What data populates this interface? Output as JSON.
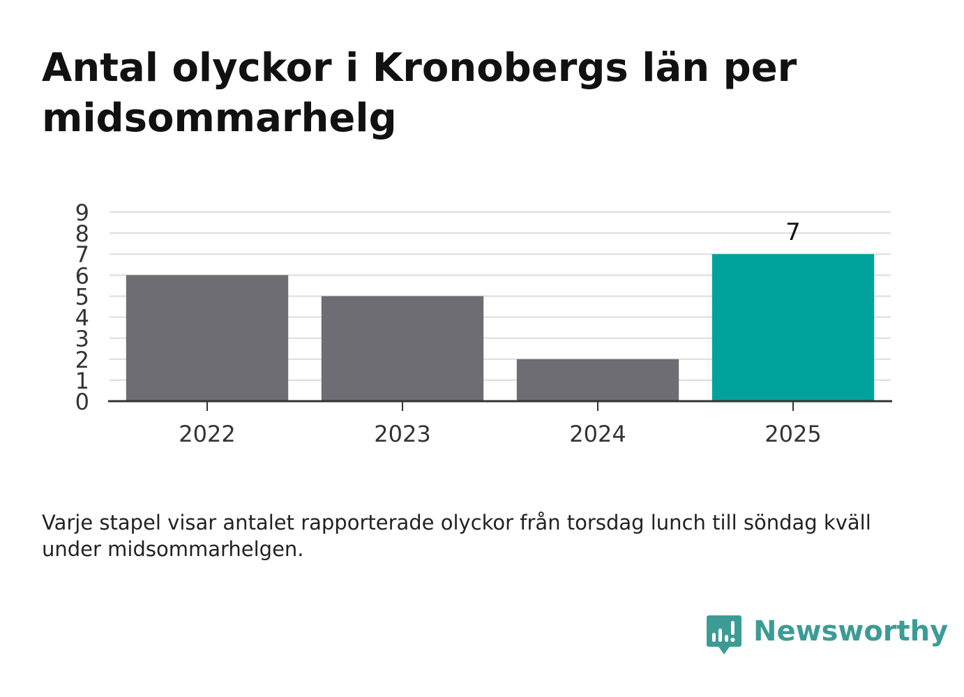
{
  "title": "Antal olyckor i Kronobergs län per midsommarhelg",
  "caption": "Varje stapel visar antalet rapporterade olyckor från torsdag lunch till söndag kväll under midsommarhelgen.",
  "brand": {
    "name": "Newsworthy",
    "icon": "chat-bubble-bar-chart-icon",
    "color": "#3c9c95"
  },
  "chart_data": {
    "type": "bar",
    "categories": [
      "2022",
      "2023",
      "2024",
      "2025"
    ],
    "values": [
      6,
      5,
      2,
      7
    ],
    "colors": [
      "#6e6d73",
      "#6e6d73",
      "#6e6d73",
      "#00a39b"
    ],
    "ylim": [
      0,
      9
    ],
    "yticks": [
      "0",
      "1",
      "2",
      "3",
      "4",
      "5",
      "6",
      "7",
      "8",
      "9"
    ],
    "data_labels": {
      "3": "7"
    },
    "grid": true,
    "legend": "none",
    "xlabel": "",
    "ylabel": ""
  }
}
